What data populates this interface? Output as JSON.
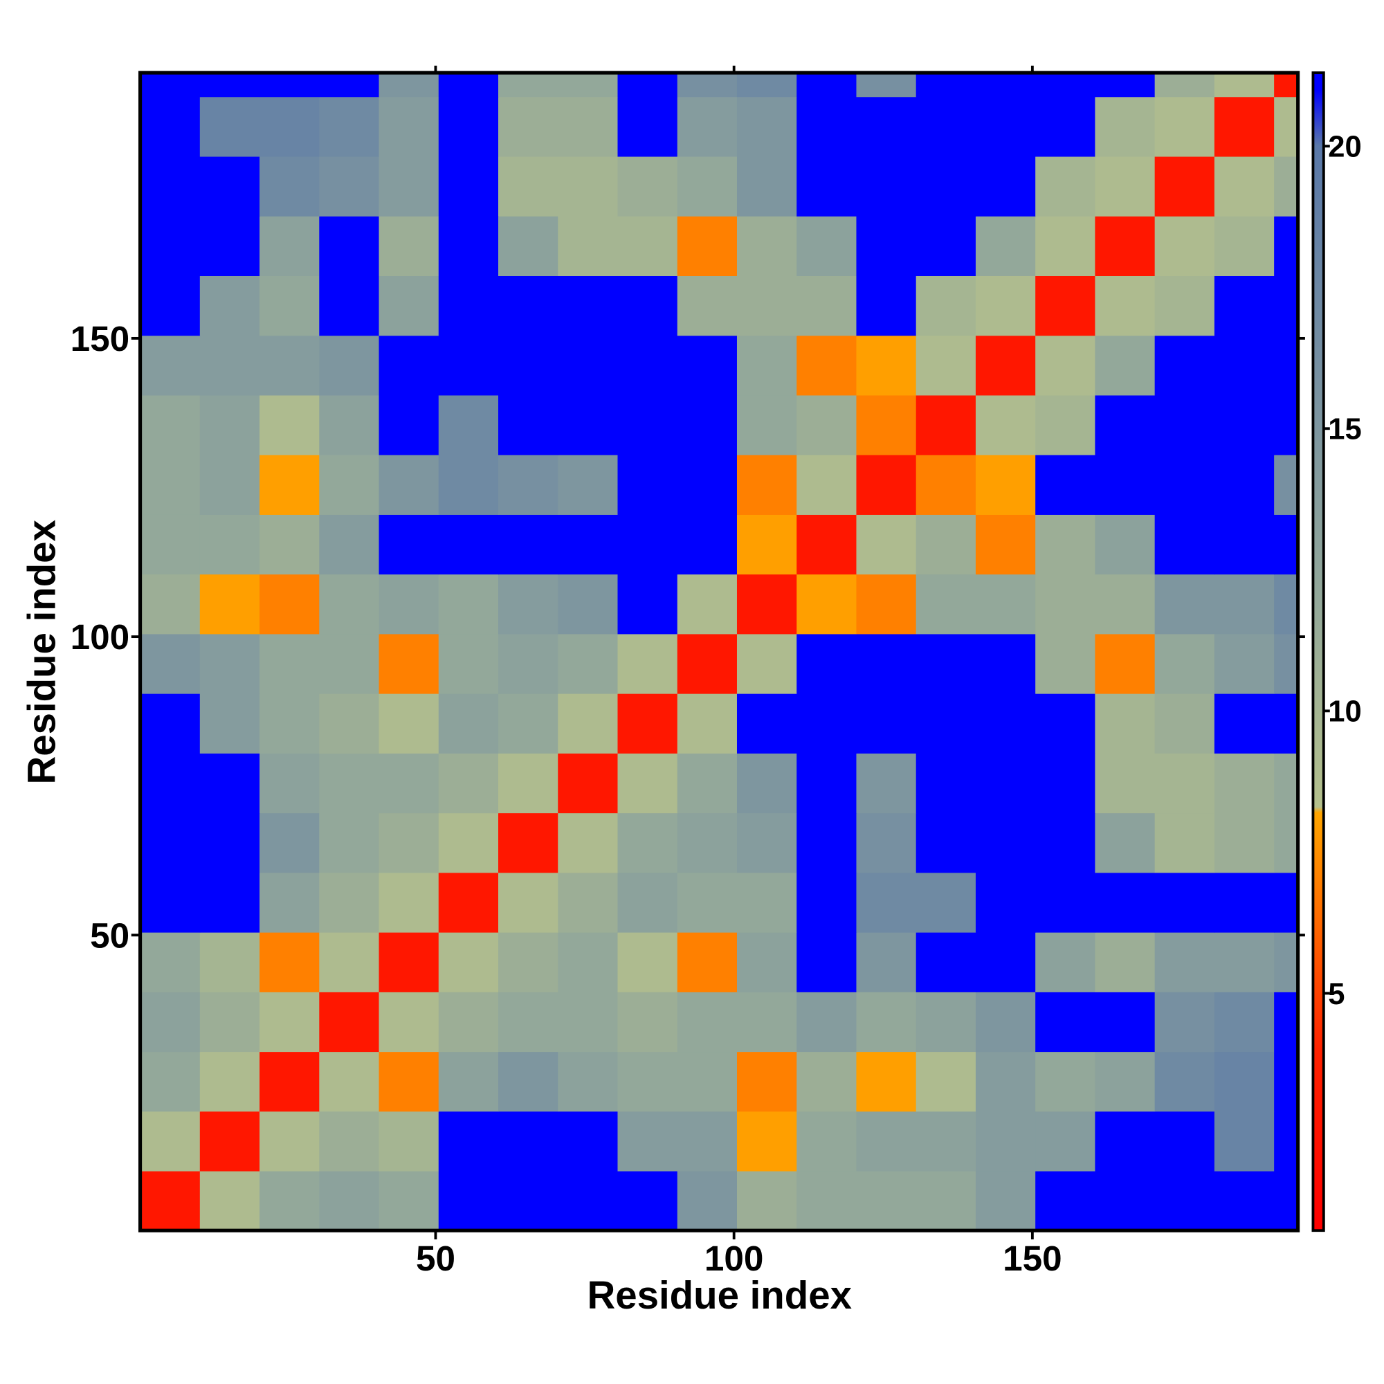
{
  "chart_data": {
    "type": "heatmap",
    "xlabel": "Residue index",
    "ylabel": "Residue index",
    "xlim": [
      0.5,
      194.5
    ],
    "ylim": [
      0.5,
      194.5
    ],
    "xticks": [
      50,
      100,
      150
    ],
    "yticks": [
      50,
      100,
      150
    ],
    "xbins": [
      0.5,
      10.5,
      20.5,
      30.5,
      40.5,
      50.5,
      60.5,
      70.5,
      80.5,
      90.5,
      100.5,
      110.5,
      120.5,
      130.5,
      140.5,
      150.5,
      160.5,
      170.5,
      180.5,
      190.5,
      194.5
    ],
    "ybins": [
      0.5,
      10.5,
      20.5,
      30.5,
      40.5,
      50.5,
      60.5,
      70.5,
      80.5,
      90.5,
      100.5,
      110.5,
      120.5,
      130.5,
      140.5,
      150.5,
      160.5,
      170.5,
      180.5,
      190.5,
      194.5
    ],
    "z": [
      [
        3,
        9,
        12,
        13,
        12,
        21,
        21,
        21,
        21,
        15,
        11,
        12,
        12,
        12,
        14,
        21,
        21,
        21,
        21,
        21
      ],
      [
        9,
        3,
        9,
        11,
        10,
        21,
        21,
        21,
        14,
        14,
        8,
        12,
        13,
        13,
        14,
        14,
        21,
        21,
        18,
        21
      ],
      [
        12,
        9,
        3,
        9,
        7,
        13,
        15,
        13,
        12,
        12,
        7,
        11,
        8,
        9,
        14,
        12,
        13,
        17,
        18,
        21
      ],
      [
        13,
        11,
        9,
        3,
        9,
        11,
        12,
        12,
        11,
        12,
        12,
        14,
        12,
        13,
        15,
        21,
        21,
        16,
        17,
        21
      ],
      [
        12,
        10,
        7,
        9,
        3,
        9,
        11,
        12,
        9,
        7,
        13,
        21,
        15,
        21,
        21,
        13,
        11,
        14,
        14,
        15
      ],
      [
        21,
        21,
        13,
        11,
        9,
        3,
        9,
        11,
        13,
        12,
        12,
        21,
        17,
        17,
        21,
        21,
        21,
        21,
        21,
        21
      ],
      [
        21,
        21,
        15,
        12,
        11,
        9,
        3,
        9,
        12,
        13,
        14,
        21,
        16,
        21,
        21,
        21,
        13,
        10,
        11,
        12
      ],
      [
        21,
        21,
        13,
        12,
        12,
        11,
        9,
        3,
        9,
        12,
        15,
        21,
        15,
        21,
        21,
        21,
        10,
        10,
        11,
        12
      ],
      [
        21,
        14,
        12,
        11,
        9,
        13,
        12,
        9,
        3,
        9,
        21,
        21,
        21,
        21,
        21,
        21,
        10,
        11,
        21,
        21
      ],
      [
        15,
        14,
        12,
        12,
        7,
        12,
        13,
        12,
        9,
        3,
        9,
        21,
        21,
        21,
        21,
        11,
        7,
        12,
        14,
        16
      ],
      [
        11,
        8,
        7,
        12,
        13,
        12,
        14,
        15,
        21,
        9,
        3,
        8,
        7,
        12,
        12,
        11,
        11,
        15,
        15,
        17
      ],
      [
        12,
        12,
        11,
        14,
        21,
        21,
        21,
        21,
        21,
        21,
        8,
        3,
        9,
        11,
        7,
        11,
        13,
        21,
        21,
        21
      ],
      [
        12,
        13,
        8,
        12,
        15,
        17,
        16,
        15,
        21,
        21,
        7,
        9,
        3,
        7,
        8,
        21,
        21,
        21,
        21,
        16
      ],
      [
        12,
        13,
        9,
        13,
        21,
        17,
        21,
        21,
        21,
        21,
        12,
        11,
        7,
        3,
        9,
        10,
        21,
        21,
        21,
        21
      ],
      [
        14,
        14,
        14,
        15,
        21,
        21,
        21,
        21,
        21,
        21,
        12,
        7,
        8,
        9,
        3,
        9,
        12,
        21,
        21,
        21
      ],
      [
        21,
        14,
        12,
        21,
        13,
        21,
        21,
        21,
        21,
        11,
        11,
        11,
        21,
        10,
        9,
        3,
        9,
        10,
        21,
        21
      ],
      [
        21,
        21,
        13,
        21,
        11,
        21,
        13,
        10,
        10,
        7,
        11,
        13,
        21,
        21,
        12,
        9,
        3,
        9,
        10,
        21
      ],
      [
        21,
        21,
        17,
        16,
        14,
        21,
        10,
        10,
        11,
        12,
        15,
        21,
        21,
        21,
        21,
        10,
        9,
        3,
        9,
        11
      ],
      [
        21,
        18,
        18,
        17,
        14,
        21,
        11,
        11,
        21,
        14,
        15,
        21,
        21,
        21,
        21,
        21,
        10,
        9,
        3,
        9
      ],
      [
        21,
        21,
        21,
        21,
        15,
        21,
        12,
        12,
        21,
        16,
        17,
        21,
        16,
        21,
        21,
        21,
        21,
        11,
        9,
        3
      ]
    ],
    "zlim": [
      0.8,
      21.3
    ],
    "zticks": [
      5,
      10,
      15,
      20
    ],
    "colorscale": [
      [
        0.8,
        "#ff0000"
      ],
      [
        4,
        "#ff2200"
      ],
      [
        8.2,
        "#ffa500"
      ],
      [
        8.3,
        "#b4c08c"
      ],
      [
        12,
        "#93a89a"
      ],
      [
        20,
        "#5a78a8"
      ],
      [
        21,
        "#0000ff"
      ]
    ]
  }
}
